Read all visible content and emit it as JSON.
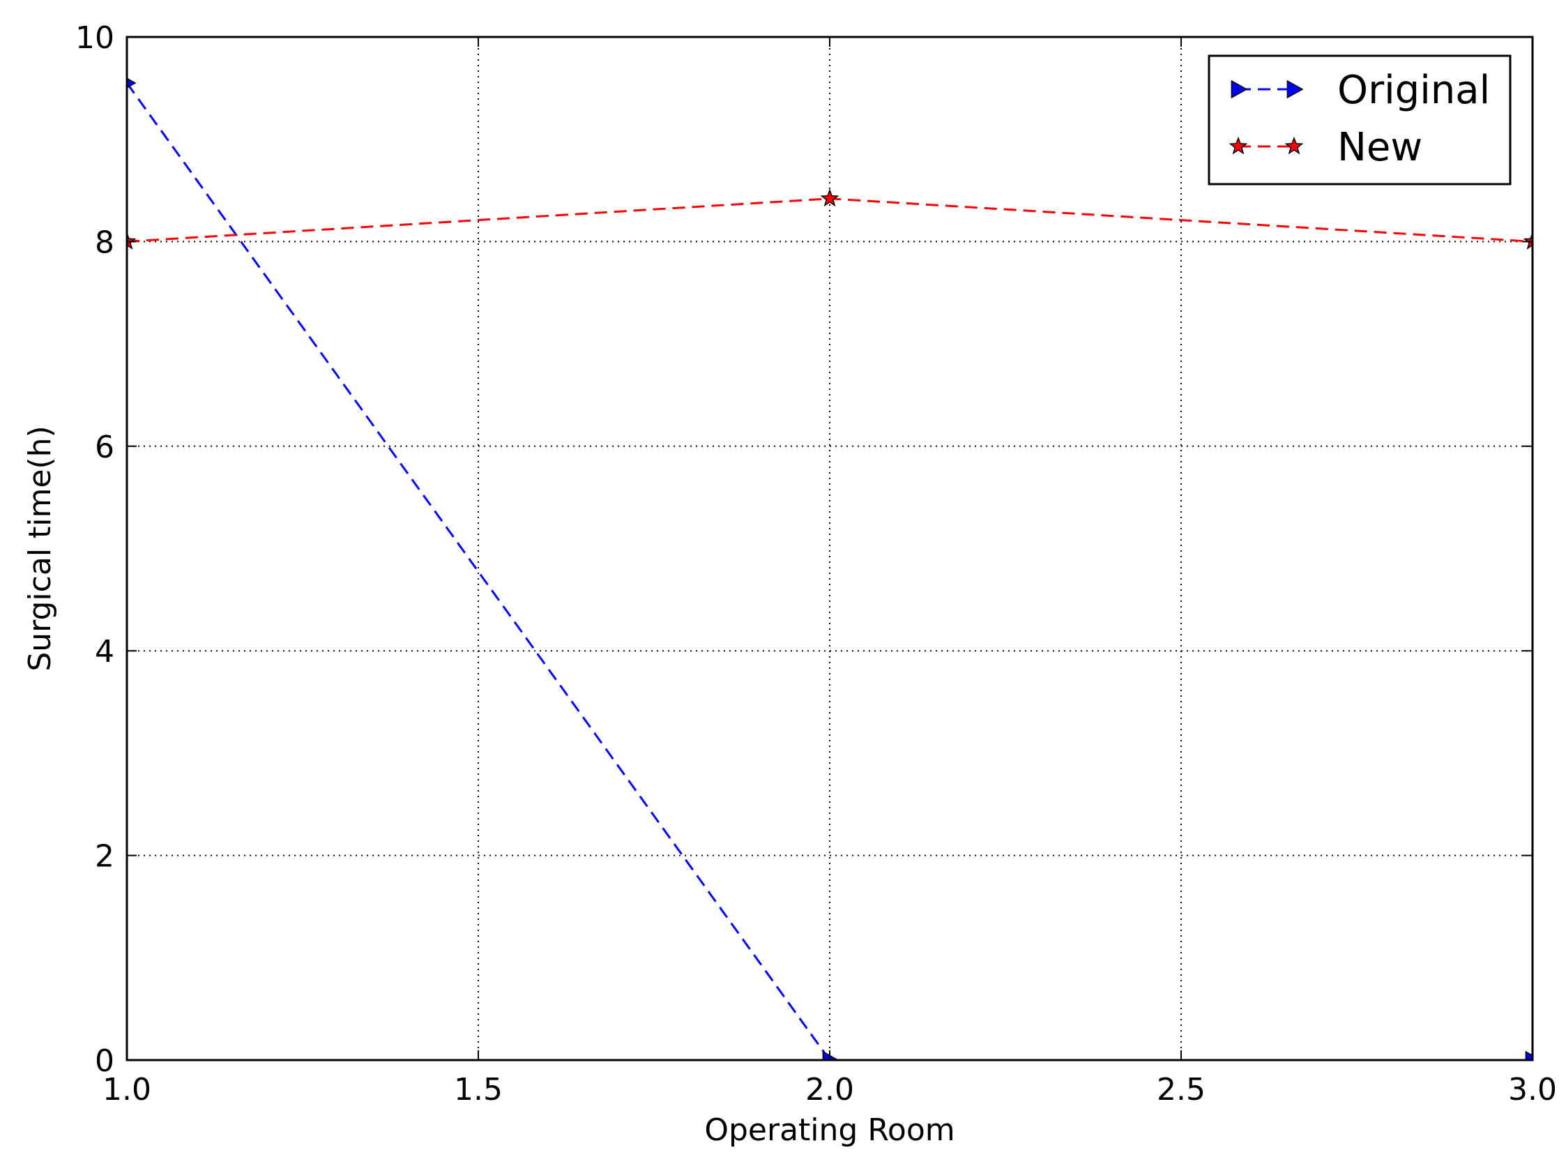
{
  "chart_data": {
    "type": "line",
    "title": "",
    "xlabel": "Operating Room",
    "ylabel": "Surgical time(h)",
    "xlim": [
      1.0,
      3.0
    ],
    "ylim": [
      0,
      10
    ],
    "xticks": [
      "1.0",
      "1.5",
      "2.0",
      "2.5",
      "3.0"
    ],
    "yticks": [
      "0",
      "2",
      "4",
      "6",
      "8",
      "10"
    ],
    "grid": true,
    "legend_position": "top-right",
    "x": [
      1.0,
      2.0,
      3.0
    ],
    "series": [
      {
        "name": "Original",
        "values": [
          9.55,
          0.0,
          0.0
        ],
        "color": "#0000ff",
        "marker": "triangle-right",
        "line_style": "dashed"
      },
      {
        "name": "New",
        "values": [
          8.0,
          8.42,
          8.0
        ],
        "color": "#ff0000",
        "marker": "star",
        "line_style": "dashed"
      }
    ]
  }
}
